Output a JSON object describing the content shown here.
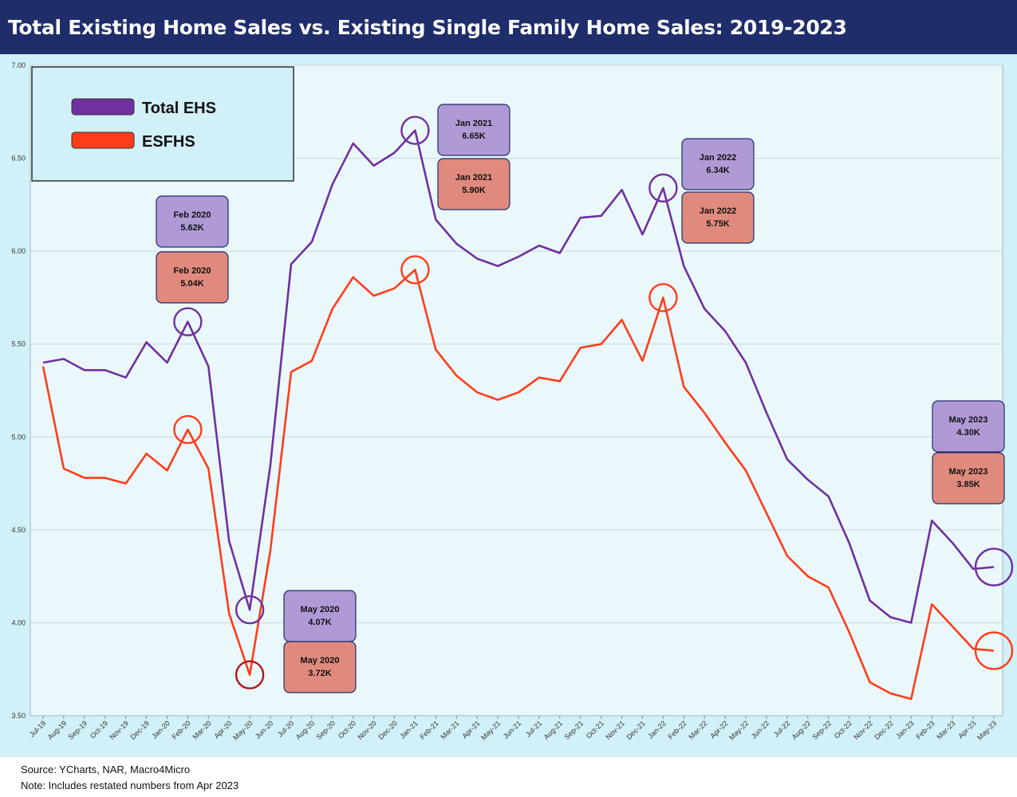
{
  "title": "Total Existing Home Sales vs. Existing Single Family Home Sales: 2019-2023",
  "footer": {
    "source": "Source: YCharts, NAR, Macro4Micro",
    "note": "Note: Includes restated numbers from Apr 2023"
  },
  "colors": {
    "total": "#7030a0",
    "esfhs": "#ff3c1a",
    "plot_bg": "#eaf8fb",
    "outer_bg": "#d2f0f7",
    "purple_box": "#b09ad6",
    "red_box": "#e08a7e",
    "title_bar": "#1f2d6b"
  },
  "chart_data": {
    "type": "line",
    "title": "Total Existing Home Sales vs. Existing Single Family Home Sales: 2019-2023",
    "xlabel": "",
    "ylabel": "",
    "ylim": [
      3.5,
      7.0
    ],
    "yticks": [
      "3.50",
      "4.00",
      "4.50",
      "5.00",
      "5.50",
      "6.00",
      "6.50",
      "7.00"
    ],
    "grid": true,
    "legend_placement": "top-left",
    "categories": [
      "Jul-19",
      "Aug-19",
      "Sep-19",
      "Oct-19",
      "Nov-19",
      "Dec-19",
      "Jan-20",
      "Feb-20",
      "Mar-20",
      "Apr-20",
      "May-20",
      "Jun-20",
      "Jul-20",
      "Aug-20",
      "Sep-20",
      "Oct-20",
      "Nov-20",
      "Dec-20",
      "Jan-21",
      "Feb-21",
      "Mar-21",
      "Apr-21",
      "May-21",
      "Jun-21",
      "Jul-21",
      "Aug-21",
      "Sep-21",
      "Oct-21",
      "Nov-21",
      "Dec-21",
      "Jan-22",
      "Feb-22",
      "Mar-22",
      "Apr-22",
      "May-22",
      "Jun-22",
      "Jul-22",
      "Aug-22",
      "Sep-22",
      "Oct-22",
      "Nov-22",
      "Dec-22",
      "Jan-23",
      "Feb-23",
      "Mar-23",
      "Apr-23",
      "May-23"
    ],
    "series": [
      {
        "name": "Total EHS",
        "values": [
          5.4,
          5.42,
          5.36,
          5.36,
          5.32,
          5.51,
          5.4,
          5.62,
          5.38,
          4.44,
          4.07,
          4.85,
          5.93,
          6.05,
          6.36,
          6.58,
          6.46,
          6.53,
          6.65,
          6.17,
          6.04,
          5.96,
          5.92,
          5.97,
          6.03,
          5.99,
          6.18,
          6.19,
          6.33,
          6.09,
          6.34,
          5.92,
          5.69,
          5.57,
          5.4,
          5.13,
          4.88,
          4.77,
          4.68,
          4.43,
          4.12,
          4.03,
          4.0,
          4.55,
          4.43,
          4.29,
          4.3
        ]
      },
      {
        "name": "ESFHS",
        "values": [
          5.38,
          4.83,
          4.78,
          4.78,
          4.75,
          4.91,
          4.82,
          5.04,
          4.83,
          4.05,
          3.72,
          4.39,
          5.35,
          5.41,
          5.69,
          5.86,
          5.76,
          5.8,
          5.9,
          5.47,
          5.33,
          5.24,
          5.2,
          5.24,
          5.32,
          5.3,
          5.48,
          5.5,
          5.63,
          5.41,
          5.75,
          5.27,
          5.13,
          4.97,
          4.82,
          4.59,
          4.36,
          4.25,
          4.19,
          3.95,
          3.68,
          3.62,
          3.59,
          4.1,
          3.98,
          3.86,
          3.85
        ]
      }
    ],
    "highlights": [
      {
        "index": 7,
        "series": 0
      },
      {
        "index": 7,
        "series": 1
      },
      {
        "index": 10,
        "series": 0
      },
      {
        "index": 10,
        "series": 1
      },
      {
        "index": 18,
        "series": 0
      },
      {
        "index": 18,
        "series": 1
      },
      {
        "index": 30,
        "series": 0
      },
      {
        "index": 30,
        "series": 1
      },
      {
        "index": 46,
        "series": 0
      },
      {
        "index": 46,
        "series": 1
      }
    ],
    "annotations": [
      {
        "kind": "purple",
        "line1": "Feb 2020",
        "line2": "5.62K"
      },
      {
        "kind": "red",
        "line1": "Feb 2020",
        "line2": "5.04K"
      },
      {
        "kind": "purple",
        "line1": "May 2020",
        "line2": "4.07K"
      },
      {
        "kind": "red",
        "line1": "May 2020",
        "line2": "3.72K"
      },
      {
        "kind": "purple",
        "line1": "Jan 2021",
        "line2": "6.65K"
      },
      {
        "kind": "red",
        "line1": "Jan 2021",
        "line2": "5.90K"
      },
      {
        "kind": "purple",
        "line1": "Jan 2022",
        "line2": "6.34K"
      },
      {
        "kind": "red",
        "line1": "Jan 2022",
        "line2": "5.75K"
      },
      {
        "kind": "purple",
        "line1": "May 2023",
        "line2": "4.30K"
      },
      {
        "kind": "red",
        "line1": "May 2023",
        "line2": "3.85K"
      }
    ]
  }
}
